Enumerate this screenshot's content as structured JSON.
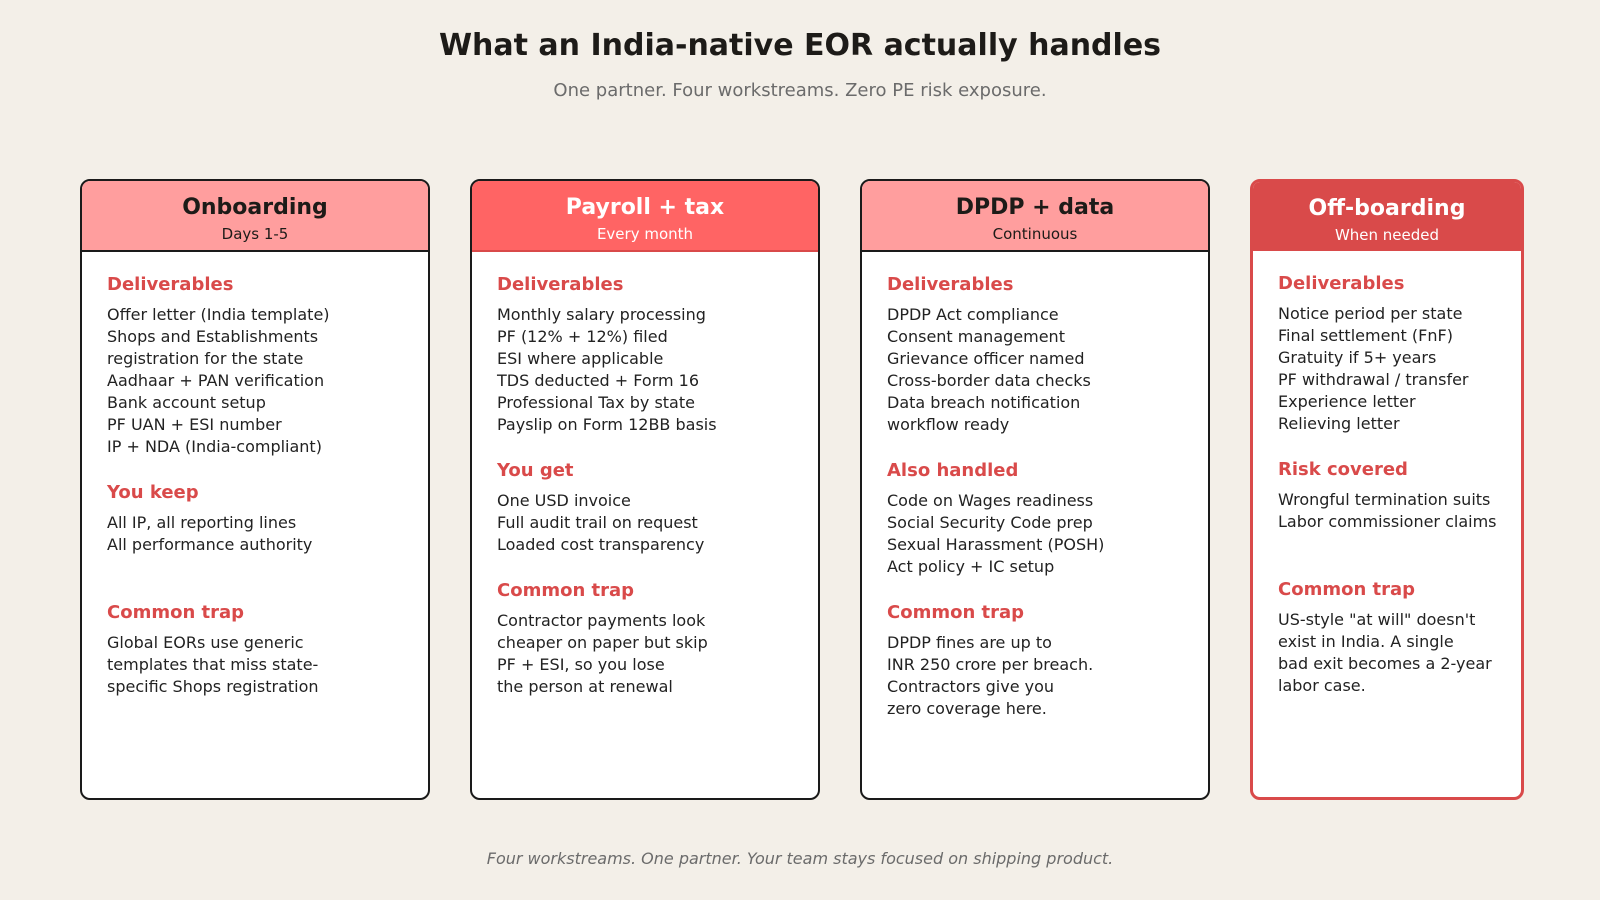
{
  "header": {
    "title": "What an India-native EOR actually handles",
    "subtitle": "One partner. Four workstreams. Zero PE risk exposure."
  },
  "cards": [
    {
      "title": "Onboarding",
      "subtitle": "Days 1-5",
      "sections": [
        {
          "heading": "Deliverables",
          "lines": [
            "Offer letter (India template)",
            "Shops and Establishments",
            "registration for the state",
            "Aadhaar + PAN verification",
            "Bank account setup",
            "PF UAN + ESI number",
            "IP + NDA (India-compliant)"
          ]
        },
        {
          "heading": "You keep",
          "lines": [
            "All IP, all reporting lines",
            "All performance authority"
          ]
        },
        {
          "heading": "Common trap",
          "lines": [
            "Global EORs use generic",
            "templates that miss state-",
            "specific Shops registration"
          ]
        }
      ]
    },
    {
      "title": "Payroll + tax",
      "subtitle": "Every month",
      "sections": [
        {
          "heading": "Deliverables",
          "lines": [
            "Monthly salary processing",
            "PF (12% + 12%) filed",
            "ESI where applicable",
            "TDS deducted + Form 16",
            "Professional Tax by state",
            "Payslip on Form 12BB basis"
          ]
        },
        {
          "heading": "You get",
          "lines": [
            "One USD invoice",
            "Full audit trail on request",
            "Loaded cost transparency"
          ]
        },
        {
          "heading": "Common trap",
          "lines": [
            "Contractor payments look",
            "cheaper on paper but skip",
            "PF + ESI, so you lose",
            "the person at renewal"
          ]
        }
      ]
    },
    {
      "title": "DPDP + data",
      "subtitle": "Continuous",
      "sections": [
        {
          "heading": "Deliverables",
          "lines": [
            "DPDP Act compliance",
            "Consent management",
            "Grievance officer named",
            "Cross-border data checks",
            "Data breach notification",
            "workflow ready"
          ]
        },
        {
          "heading": "Also handled",
          "lines": [
            "Code on Wages readiness",
            "Social Security Code prep",
            "Sexual Harassment (POSH)",
            "Act policy + IC setup"
          ]
        },
        {
          "heading": "Common trap",
          "lines": [
            "DPDP fines are up to",
            "INR 250 crore per breach.",
            "Contractors give you",
            "zero coverage here."
          ]
        }
      ]
    },
    {
      "title": "Off-boarding",
      "subtitle": "When needed",
      "sections": [
        {
          "heading": "Deliverables",
          "lines": [
            "Notice period per state",
            "Final settlement (FnF)",
            "Gratuity if 5+ years",
            "PF withdrawal / transfer",
            "Experience letter",
            "Relieving letter"
          ]
        },
        {
          "heading": "Risk covered",
          "lines": [
            "Wrongful termination suits",
            "Labor commissioner claims"
          ]
        },
        {
          "heading": "Common trap",
          "lines": [
            "US-style \"at will\" doesn't",
            "exist in India. A single",
            "bad exit becomes a 2-year",
            "labor case."
          ]
        }
      ]
    }
  ],
  "footer": "Four workstreams. One partner. Your team stays focused on shipping product."
}
